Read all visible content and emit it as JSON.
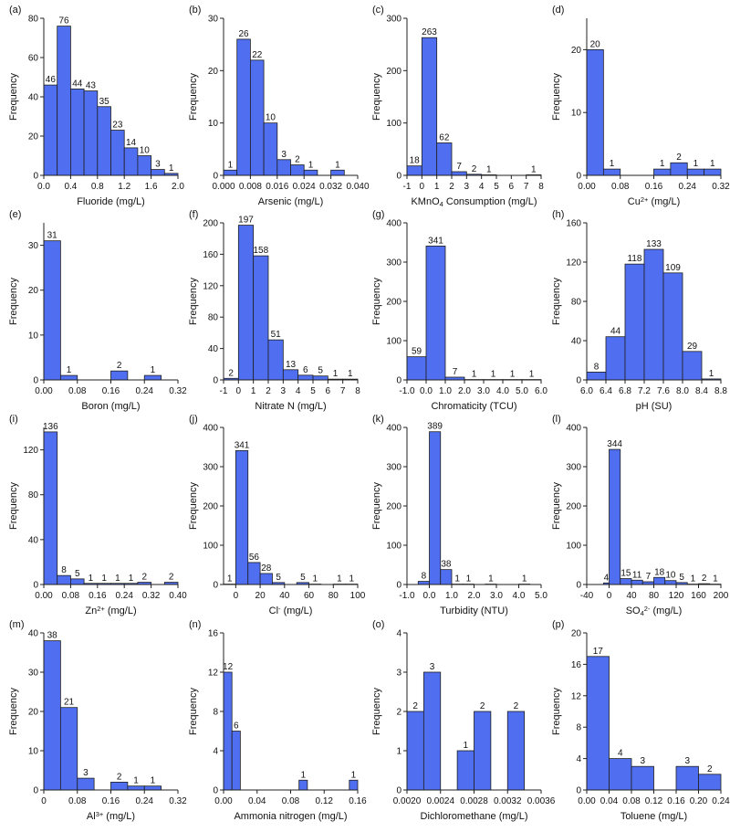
{
  "figure": {
    "bar_color": "#4f6ff0",
    "bar_edge": "#1f1f1f",
    "axis_color": "#222222"
  },
  "chart_data": [
    {
      "id": "a",
      "type": "bar",
      "panel_label": "(a)",
      "xlabel_parts": [
        {
          "t": "Fluoride (mg/L)",
          "s": ""
        }
      ],
      "ylabel": "Frequency",
      "xlim": [
        0,
        2.0
      ],
      "xticks": [
        "0.0",
        "0.4",
        "0.8",
        "1.2",
        "1.6",
        "2.0"
      ],
      "ylim": [
        0,
        80
      ],
      "yticks": [
        "0",
        "20",
        "40",
        "60",
        "80"
      ],
      "bar_edges": [
        0,
        0.2,
        0.4,
        0.6,
        0.8,
        1.0,
        1.2,
        1.4,
        1.6,
        1.8,
        2.0
      ],
      "values": [
        46,
        76,
        44,
        43,
        35,
        23,
        14,
        10,
        3,
        1
      ]
    },
    {
      "id": "b",
      "type": "bar",
      "panel_label": "(b)",
      "xlabel_parts": [
        {
          "t": "Arsenic (mg/L)",
          "s": ""
        }
      ],
      "ylabel": "Frequency",
      "xlim": [
        0,
        0.04
      ],
      "xticks": [
        "0.000",
        "0.008",
        "0.016",
        "0.024",
        "0.032",
        "0.040"
      ],
      "ylim": [
        0,
        30
      ],
      "yticks": [
        "0",
        "10",
        "20",
        "30"
      ],
      "bar_edges": [
        0,
        0.004,
        0.008,
        0.012,
        0.016,
        0.02,
        0.024,
        0.028,
        0.032,
        0.036
      ],
      "values": [
        1,
        26,
        22,
        10,
        3,
        2,
        1,
        0,
        1
      ]
    },
    {
      "id": "c",
      "type": "bar",
      "panel_label": "(c)",
      "xlabel_parts": [
        {
          "t": "KMnO",
          "s": ""
        },
        {
          "t": "4",
          "s": "sub"
        },
        {
          "t": " Consumption (mg/L)",
          "s": ""
        }
      ],
      "ylabel": "Frequency",
      "xlim": [
        -1,
        8
      ],
      "xticks": [
        "-1",
        "0",
        "1",
        "2",
        "3",
        "4",
        "5",
        "6",
        "7",
        "8"
      ],
      "ylim": [
        0,
        300
      ],
      "yticks": [
        "0",
        "100",
        "200",
        "300"
      ],
      "bar_edges": [
        -1,
        0,
        1,
        2,
        3,
        4,
        5,
        6,
        7,
        8
      ],
      "values": [
        18,
        263,
        62,
        7,
        2,
        1,
        0,
        0,
        1
      ]
    },
    {
      "id": "d",
      "type": "bar",
      "panel_label": "(d)",
      "xlabel_parts": [
        {
          "t": "Cu",
          "s": ""
        },
        {
          "t": "2+",
          "s": "sup"
        },
        {
          "t": " (mg/L)",
          "s": ""
        }
      ],
      "ylabel": "Frequency",
      "xlim": [
        0,
        0.32
      ],
      "xticks": [
        "0.00",
        "0.08",
        "0.16",
        "0.24",
        "0.32"
      ],
      "ylim": [
        0,
        25
      ],
      "yticks": [
        "0",
        "10",
        "20"
      ],
      "bar_edges": [
        0,
        0.04,
        0.08,
        0.12,
        0.16,
        0.2,
        0.24,
        0.28,
        0.32
      ],
      "values": [
        20,
        1,
        0,
        0,
        1,
        2,
        1,
        1
      ]
    },
    {
      "id": "e",
      "type": "bar",
      "panel_label": "(e)",
      "xlabel_parts": [
        {
          "t": "Boron (mg/L)",
          "s": ""
        }
      ],
      "ylabel": "Frequency",
      "xlim": [
        0,
        0.32
      ],
      "xticks": [
        "0.00",
        "0.08",
        "0.16",
        "0.24",
        "0.32"
      ],
      "ylim": [
        0,
        35
      ],
      "yticks": [
        "0",
        "10",
        "20",
        "30"
      ],
      "bar_edges": [
        0,
        0.04,
        0.08,
        0.12,
        0.16,
        0.2,
        0.24,
        0.28,
        0.32
      ],
      "values": [
        31,
        1,
        0,
        0,
        2,
        0,
        1,
        0
      ]
    },
    {
      "id": "f",
      "type": "bar",
      "panel_label": "(f)",
      "xlabel_parts": [
        {
          "t": "Nitrate N (mg/L)",
          "s": ""
        }
      ],
      "ylabel": "Frequency",
      "xlim": [
        -1,
        8
      ],
      "xticks": [
        "-1",
        "0",
        "1",
        "2",
        "3",
        "4",
        "5",
        "6",
        "7",
        "8"
      ],
      "ylim": [
        0,
        200
      ],
      "yticks": [
        "0",
        "40",
        "80",
        "120",
        "160",
        "200"
      ],
      "bar_edges": [
        -1,
        0,
        1,
        2,
        3,
        4,
        5,
        6,
        7,
        8
      ],
      "values": [
        2,
        197,
        158,
        51,
        13,
        6,
        5,
        1,
        1
      ]
    },
    {
      "id": "g",
      "type": "bar",
      "panel_label": "(g)",
      "xlabel_parts": [
        {
          "t": "Chromaticity (TCU)",
          "s": ""
        }
      ],
      "ylabel": "Frequency",
      "xlim": [
        -1,
        6
      ],
      "xticks": [
        "-1.0",
        "0.0",
        "1.0",
        "2.0",
        "3.0",
        "4.0",
        "5.0",
        "6.0"
      ],
      "ylim": [
        0,
        400
      ],
      "yticks": [
        "0",
        "100",
        "200",
        "300",
        "400"
      ],
      "bar_edges": [
        -1,
        0,
        1,
        2,
        3,
        4,
        5,
        6
      ],
      "values": [
        59,
        341,
        7,
        1,
        1,
        1,
        1
      ]
    },
    {
      "id": "h",
      "type": "bar",
      "panel_label": "(h)",
      "xlabel_parts": [
        {
          "t": "pH (SU)",
          "s": ""
        }
      ],
      "ylabel": "Frequency",
      "xlim": [
        6.0,
        8.8
      ],
      "xticks": [
        "6.0",
        "6.4",
        "6.8",
        "7.2",
        "7.6",
        "8.0",
        "8.4",
        "8.8"
      ],
      "ylim": [
        0,
        160
      ],
      "yticks": [
        "0",
        "40",
        "80",
        "120",
        "160"
      ],
      "bar_edges": [
        6.0,
        6.4,
        6.8,
        7.2,
        7.6,
        8.0,
        8.4,
        8.8
      ],
      "values": [
        8,
        44,
        118,
        133,
        109,
        29,
        1
      ]
    },
    {
      "id": "i",
      "type": "bar",
      "panel_label": "(i)",
      "xlabel_parts": [
        {
          "t": "Zn",
          "s": ""
        },
        {
          "t": "2+",
          "s": "sup"
        },
        {
          "t": " (mg/L)",
          "s": ""
        }
      ],
      "ylabel": "Frequency",
      "xlim": [
        0,
        0.4
      ],
      "xticks": [
        "0.00",
        "0.08",
        "0.16",
        "0.24",
        "0.32",
        "0.40"
      ],
      "ylim": [
        0,
        140
      ],
      "yticks": [
        "0",
        "40",
        "80",
        "120"
      ],
      "bar_edges": [
        0,
        0.04,
        0.08,
        0.12,
        0.16,
        0.2,
        0.24,
        0.28,
        0.32,
        0.36,
        0.4
      ],
      "values": [
        136,
        8,
        5,
        1,
        1,
        1,
        1,
        2,
        0,
        2
      ]
    },
    {
      "id": "j",
      "type": "bar",
      "panel_label": "(j)",
      "xlabel_parts": [
        {
          "t": "Cl",
          "s": ""
        },
        {
          "t": "-",
          "s": "sup"
        },
        {
          "t": " (mg/L)",
          "s": ""
        }
      ],
      "ylabel": "Frequency",
      "xlim": [
        -10,
        100
      ],
      "xticks": [
        "0",
        "20",
        "40",
        "60",
        "80",
        "100"
      ],
      "ylim": [
        0,
        400
      ],
      "yticks": [
        "0",
        "100",
        "200",
        "300",
        "400"
      ],
      "bar_edges": [
        -10,
        0,
        10,
        20,
        30,
        40,
        50,
        60,
        70,
        80,
        90,
        100
      ],
      "values": [
        1,
        341,
        56,
        28,
        5,
        0,
        5,
        1,
        0,
        1,
        1
      ]
    },
    {
      "id": "k",
      "type": "bar",
      "panel_label": "(k)",
      "xlabel_parts": [
        {
          "t": "Turbidity (NTU)",
          "s": ""
        }
      ],
      "ylabel": "Frequency",
      "xlim": [
        -1,
        5
      ],
      "xticks": [
        "-1.0",
        "0.0",
        "1.0",
        "2.0",
        "3.0",
        "4.0",
        "5.0"
      ],
      "ylim": [
        0,
        400
      ],
      "yticks": [
        "0",
        "100",
        "200",
        "300",
        "400"
      ],
      "bar_edges": [
        -0.5,
        0,
        0.5,
        1.0,
        1.5,
        2.0,
        2.5,
        3.0,
        3.5,
        4.0,
        4.5
      ],
      "values": [
        8,
        389,
        38,
        1,
        1,
        0,
        1,
        0,
        0,
        1
      ]
    },
    {
      "id": "l",
      "type": "bar",
      "panel_label": "(l)",
      "xlabel_parts": [
        {
          "t": "SO",
          "s": ""
        },
        {
          "t": "4",
          "s": "sub"
        },
        {
          "t": "2-",
          "s": "sup"
        },
        {
          "t": " (mg/L)",
          "s": ""
        }
      ],
      "ylabel": "Frequency",
      "xlim": [
        -40,
        200
      ],
      "xticks": [
        "-40",
        "0",
        "40",
        "80",
        "120",
        "160",
        "200"
      ],
      "ylim": [
        0,
        400
      ],
      "yticks": [
        "0",
        "100",
        "200",
        "300",
        "400"
      ],
      "bar_edges": [
        -10,
        0,
        20,
        40,
        60,
        80,
        100,
        120,
        140,
        160,
        180,
        200
      ],
      "values": [
        4,
        344,
        15,
        11,
        7,
        18,
        10,
        5,
        1,
        2,
        1
      ]
    },
    {
      "id": "m",
      "type": "bar",
      "panel_label": "(m)",
      "xlabel_parts": [
        {
          "t": "Al",
          "s": ""
        },
        {
          "t": "3+",
          "s": "sup"
        },
        {
          "t": " (mg/L)",
          "s": ""
        }
      ],
      "ylabel": "Frequency",
      "xlim": [
        0,
        0.32
      ],
      "xticks": [
        "0",
        "0.08",
        "0.16",
        "0.24",
        "0.32"
      ],
      "ylim": [
        0,
        40
      ],
      "yticks": [
        "0",
        "10",
        "20",
        "30",
        "40"
      ],
      "bar_edges": [
        0,
        0.04,
        0.08,
        0.12,
        0.16,
        0.2,
        0.24,
        0.28
      ],
      "values": [
        38,
        21,
        3,
        0,
        2,
        1,
        1
      ]
    },
    {
      "id": "n",
      "type": "bar",
      "panel_label": "(n)",
      "xlabel_parts": [
        {
          "t": "Ammonia nitrogen (mg/L)",
          "s": ""
        }
      ],
      "ylabel": "Frequency",
      "xlim": [
        0,
        0.16
      ],
      "xticks": [
        "0.00",
        "0.04",
        "0.08",
        "0.12",
        "0.16"
      ],
      "ylim": [
        0,
        16
      ],
      "yticks": [
        "0",
        "4",
        "8",
        "12",
        "16"
      ],
      "bar_edges": [
        0,
        0.01,
        0.02,
        0.03,
        0.04,
        0.05,
        0.06,
        0.07,
        0.08,
        0.09,
        0.1,
        0.11,
        0.12,
        0.13,
        0.14,
        0.15,
        0.16
      ],
      "values": [
        12,
        6,
        0,
        0,
        0,
        0,
        0,
        0,
        0,
        1,
        0,
        0,
        0,
        0,
        0,
        1
      ]
    },
    {
      "id": "o",
      "type": "bar",
      "panel_label": "(o)",
      "xlabel_parts": [
        {
          "t": "Dichloromethane (mg/L)",
          "s": ""
        }
      ],
      "ylabel": "Frequency",
      "xlim": [
        0.002,
        0.0036
      ],
      "xticks": [
        "0.0020",
        "0.0024",
        "0.0028",
        "0.0032",
        "0.0036"
      ],
      "ylim": [
        0,
        4
      ],
      "yticks": [
        "0",
        "1",
        "2",
        "3",
        "4"
      ],
      "bar_edges": [
        0.002,
        0.0022,
        0.0024,
        0.0026,
        0.0028,
        0.003,
        0.0032,
        0.0034
      ],
      "values": [
        2,
        3,
        0,
        1,
        2,
        0,
        2
      ]
    },
    {
      "id": "p",
      "type": "bar",
      "panel_label": "(p)",
      "xlabel_parts": [
        {
          "t": "Toluene (mg/L)",
          "s": ""
        }
      ],
      "ylabel": "Frequency",
      "xlim": [
        0,
        0.24
      ],
      "xticks": [
        "0.00",
        "0.04",
        "0.08",
        "0.12",
        "0.16",
        "0.20",
        "0.24"
      ],
      "ylim": [
        0,
        20
      ],
      "yticks": [
        "0",
        "4",
        "8",
        "12",
        "16",
        "20"
      ],
      "bar_edges": [
        0,
        0.04,
        0.08,
        0.12,
        0.16,
        0.2,
        0.24
      ],
      "values": [
        17,
        4,
        3,
        0,
        3,
        2
      ]
    }
  ]
}
